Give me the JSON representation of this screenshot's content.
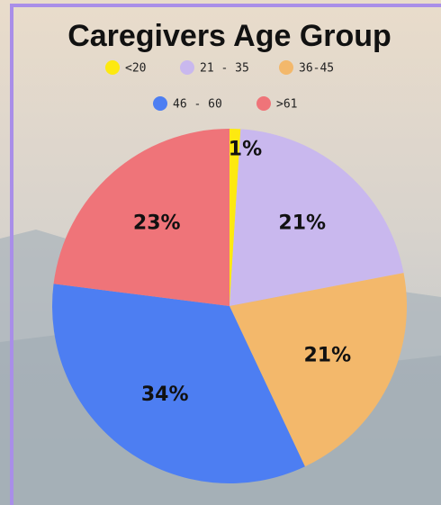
{
  "chart_data": {
    "type": "pie",
    "title": "Caregivers Age Group",
    "categories": [
      "<20",
      "21 - 35",
      "36-45",
      "46 - 60",
      ">61"
    ],
    "values": [
      1,
      21,
      21,
      34,
      23
    ],
    "value_labels": [
      "1%",
      "21%",
      "21%",
      "34%",
      "23%"
    ],
    "colors": [
      "#fde910",
      "#c9b8ee",
      "#f3b86b",
      "#4d7ef2",
      "#ef7479"
    ],
    "legend": "top"
  }
}
